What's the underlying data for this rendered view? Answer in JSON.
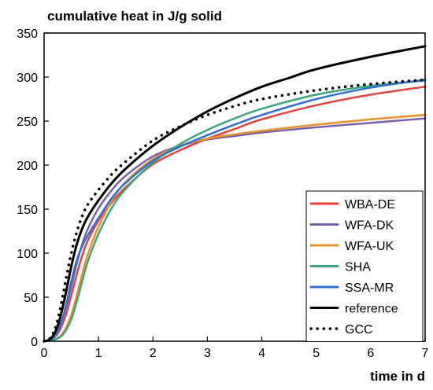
{
  "chart_data": {
    "type": "line",
    "title": "cumulative heat in J/g solid",
    "xlabel": "time in d",
    "ylabel": "",
    "xlim": [
      0,
      7
    ],
    "ylim": [
      0,
      350
    ],
    "xticks": [
      0,
      1,
      2,
      3,
      4,
      5,
      6,
      7
    ],
    "yticks": [
      0,
      50,
      100,
      150,
      200,
      250,
      300,
      350
    ],
    "grid": false,
    "legend_position": "bottom-right",
    "series": [
      {
        "name": "WBA-DE",
        "color": "#e8413c",
        "style": "solid",
        "x": [
          0,
          0.1,
          0.2,
          0.3,
          0.4,
          0.5,
          0.6,
          0.7,
          0.8,
          1.0,
          1.25,
          1.5,
          2.0,
          2.5,
          3.0,
          3.5,
          4.0,
          5.0,
          6.0,
          7.0
        ],
        "y": [
          0,
          1,
          5,
          14,
          30,
          52,
          76,
          97,
          114,
          137,
          158,
          175,
          201,
          217,
          230,
          241,
          252,
          268,
          280,
          289
        ]
      },
      {
        "name": "WFA-DK",
        "color": "#7b5fa8",
        "style": "solid",
        "x": [
          0,
          0.1,
          0.2,
          0.3,
          0.4,
          0.5,
          0.6,
          0.7,
          0.8,
          1.0,
          1.25,
          1.5,
          2.0,
          2.5,
          3.0,
          3.5,
          4.0,
          5.0,
          6.0,
          7.0
        ],
        "y": [
          0,
          2,
          8,
          20,
          38,
          62,
          88,
          110,
          127,
          151,
          172,
          188,
          210,
          222,
          229,
          233,
          237,
          243,
          248,
          253
        ]
      },
      {
        "name": "WFA-UK",
        "color": "#e8922d",
        "style": "solid",
        "x": [
          0,
          0.1,
          0.2,
          0.3,
          0.4,
          0.5,
          0.6,
          0.7,
          0.8,
          1.0,
          1.25,
          1.5,
          2.0,
          2.5,
          3.0,
          3.5,
          4.0,
          5.0,
          6.0,
          7.0
        ],
        "y": [
          0,
          0.5,
          2,
          6,
          15,
          30,
          52,
          76,
          98,
          130,
          160,
          181,
          207,
          222,
          230,
          235,
          239,
          246,
          252,
          257
        ]
      },
      {
        "name": "SHA",
        "color": "#3aa67a",
        "style": "solid",
        "x": [
          0,
          0.1,
          0.2,
          0.3,
          0.4,
          0.5,
          0.6,
          0.7,
          0.8,
          1.0,
          1.25,
          1.5,
          2.0,
          2.5,
          3.0,
          3.5,
          4.0,
          5.0,
          6.0,
          7.0
        ],
        "y": [
          0,
          0.5,
          2,
          5,
          12,
          25,
          45,
          68,
          90,
          122,
          152,
          173,
          203,
          224,
          240,
          253,
          264,
          280,
          290,
          296
        ]
      },
      {
        "name": "SSA-MR",
        "color": "#2f6fd6",
        "style": "solid",
        "x": [
          0,
          0.1,
          0.2,
          0.3,
          0.4,
          0.5,
          0.6,
          0.7,
          0.8,
          1.0,
          1.25,
          1.5,
          2.0,
          2.5,
          3.0,
          3.5,
          4.0,
          5.0,
          6.0,
          7.0
        ],
        "y": [
          0,
          1,
          6,
          18,
          40,
          68,
          92,
          108,
          120,
          140,
          163,
          180,
          205,
          221,
          234,
          246,
          257,
          275,
          288,
          297
        ]
      },
      {
        "name": "reference",
        "color": "#000000",
        "style": "solid",
        "x": [
          0,
          0.1,
          0.2,
          0.3,
          0.4,
          0.5,
          0.6,
          0.7,
          0.8,
          1.0,
          1.25,
          1.5,
          2.0,
          2.5,
          3.0,
          3.5,
          4.0,
          4.5,
          5.0,
          6.0,
          7.0
        ],
        "y": [
          0,
          2,
          10,
          28,
          55,
          85,
          110,
          128,
          141,
          160,
          180,
          196,
          222,
          243,
          261,
          276,
          289,
          299,
          309,
          323,
          335
        ]
      },
      {
        "name": "GCC",
        "color": "#000000",
        "style": "dotted",
        "x": [
          0,
          0.1,
          0.2,
          0.3,
          0.4,
          0.5,
          0.6,
          0.7,
          0.8,
          1.0,
          1.25,
          1.5,
          2.0,
          2.5,
          3.0,
          3.5,
          4.0,
          5.0,
          6.0,
          7.0
        ],
        "y": [
          0,
          3,
          14,
          38,
          70,
          100,
          124,
          142,
          155,
          172,
          190,
          204,
          228,
          244,
          257,
          267,
          275,
          285,
          292,
          297
        ]
      }
    ]
  }
}
